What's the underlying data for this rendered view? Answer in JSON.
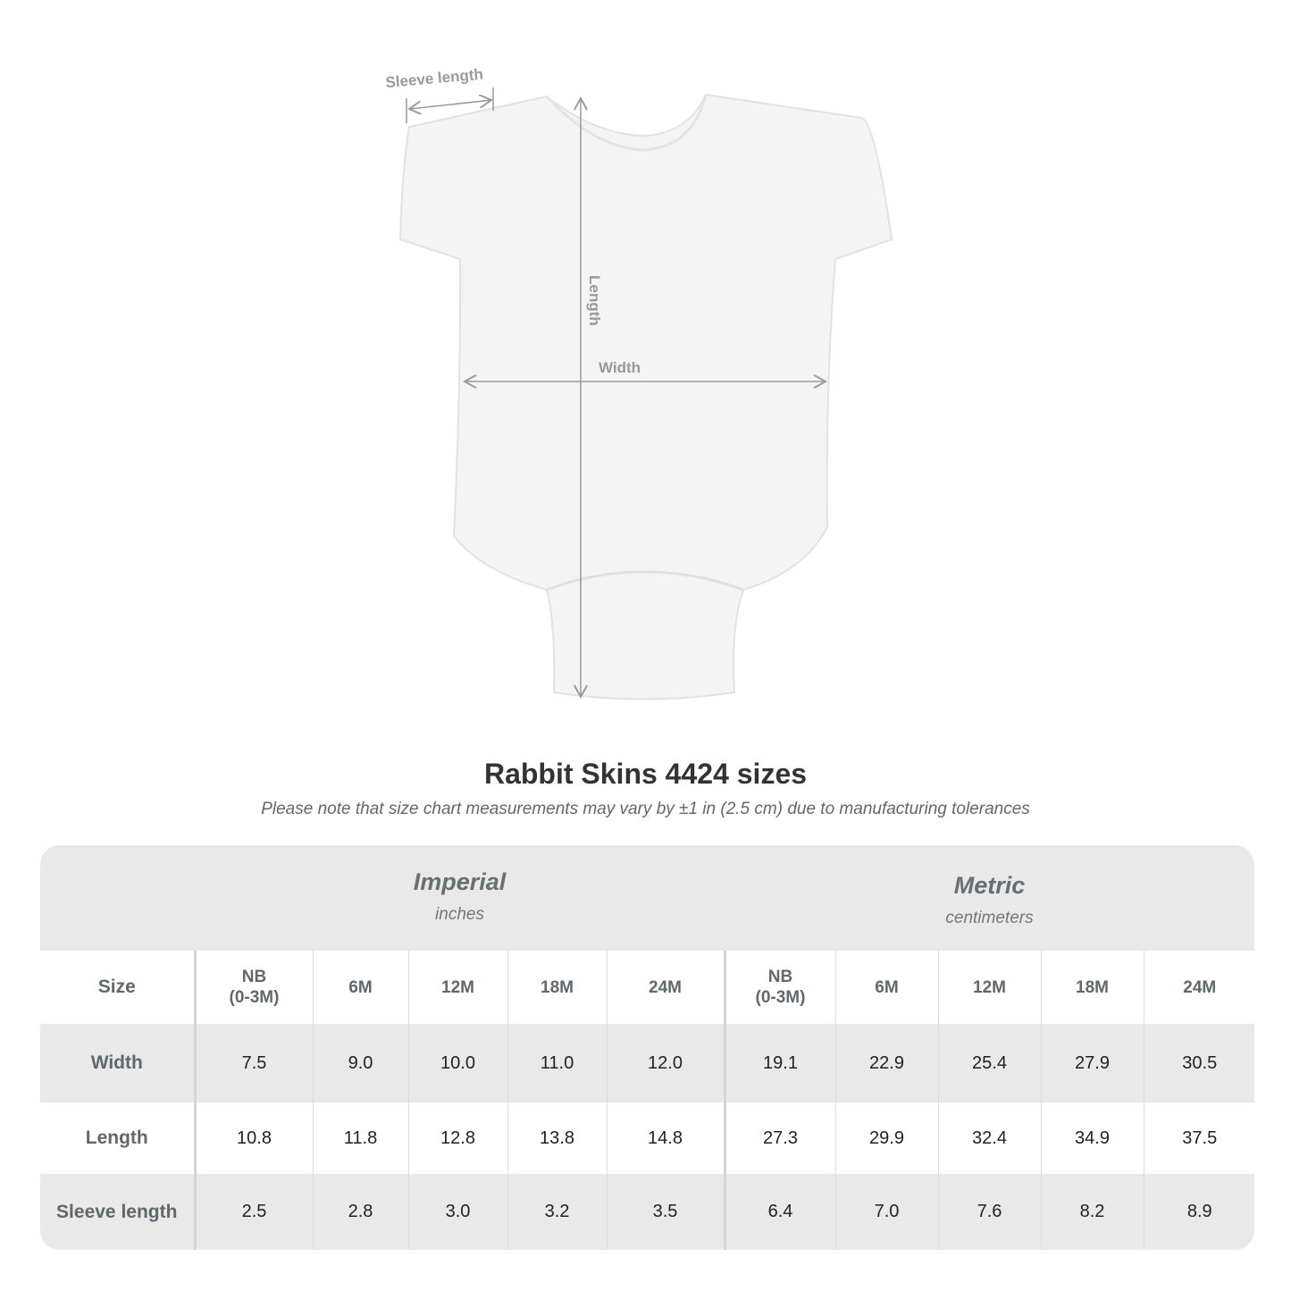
{
  "diagram": {
    "labels": {
      "sleeve": "Sleeve length",
      "length": "Length",
      "width": "Width"
    }
  },
  "title": "Rabbit Skins 4424 sizes",
  "note": "Please note that size chart measurements may vary by ±1 in (2.5 cm) due to manufacturing tolerances",
  "table": {
    "imperial": {
      "name": "Imperial",
      "unit": "inches"
    },
    "metric": {
      "name": "Metric",
      "unit": "centimeters"
    },
    "size_label": "Size",
    "sizes": [
      "NB\n(0-3M)",
      "6M",
      "12M",
      "18M",
      "24M"
    ],
    "rows": [
      {
        "label": "Width",
        "imperial": [
          "7.5",
          "9.0",
          "10.0",
          "11.0",
          "12.0"
        ],
        "metric": [
          "19.1",
          "22.9",
          "25.4",
          "27.9",
          "30.5"
        ]
      },
      {
        "label": "Length",
        "imperial": [
          "10.8",
          "11.8",
          "12.8",
          "13.8",
          "14.8"
        ],
        "metric": [
          "27.3",
          "29.9",
          "32.4",
          "34.9",
          "37.5"
        ]
      },
      {
        "label": "Sleeve length",
        "imperial": [
          "2.5",
          "2.8",
          "3.0",
          "3.2",
          "3.5"
        ],
        "metric": [
          "6.4",
          "7.0",
          "7.6",
          "8.2",
          "8.9"
        ]
      }
    ],
    "colors": {
      "band": "#e9e9e9",
      "label_text": "#5f686c"
    }
  }
}
